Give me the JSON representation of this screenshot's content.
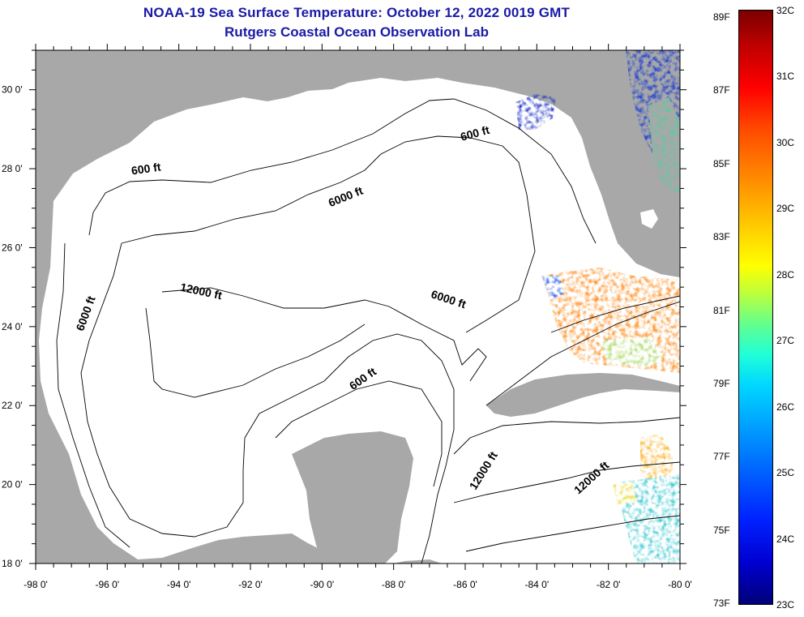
{
  "header": {
    "title": "NOAA-19 Sea Surface Temperature:  October 12, 2022 0019 GMT",
    "subtitle": "Rutgers Coastal Ocean Observation Lab"
  },
  "colors": {
    "land": "#a8a8a8",
    "water": "#ffffff",
    "title": "#1a1aa6",
    "contour": "#000000"
  },
  "map": {
    "lon_range": [
      -98,
      -80
    ],
    "lat_range": [
      18,
      31
    ],
    "lon_ticks": [
      "-98 0'",
      "-96 0'",
      "-94 0'",
      "-92 0'",
      "-90 0'",
      "-88 0'",
      "-86 0'",
      "-84 0'",
      "-82 0'",
      "-80 0'"
    ],
    "lat_ticks": [
      "18 0'",
      "20 0'",
      "22 0'",
      "24 0'",
      "26 0'",
      "28 0'",
      "30 0'"
    ],
    "contour_labels": [
      {
        "text": "600 ft",
        "lon": -85.7,
        "lat": 28.8,
        "rot": -15
      },
      {
        "text": "600 ft",
        "lon": -94.9,
        "lat": 27.9,
        "rot": -8
      },
      {
        "text": "6000 ft",
        "lon": -89.3,
        "lat": 27.2,
        "rot": -22
      },
      {
        "text": "12000 ft",
        "lon": -93.4,
        "lat": 24.8,
        "rot": 12
      },
      {
        "text": "6000 ft",
        "lon": -96.5,
        "lat": 24.3,
        "rot": -70
      },
      {
        "text": "6000 ft",
        "lon": -86.5,
        "lat": 24.6,
        "rot": 18
      },
      {
        "text": "600 ft",
        "lon": -88.8,
        "lat": 22.6,
        "rot": -35
      },
      {
        "text": "12000 ft",
        "lon": -85.4,
        "lat": 20.3,
        "rot": -58
      },
      {
        "text": "12000 ft",
        "lon": -82.4,
        "lat": 20.1,
        "rot": -42
      }
    ]
  },
  "colorbar": {
    "fahrenheit": [
      "89F",
      "87F",
      "85F",
      "83F",
      "81F",
      "79F",
      "77F",
      "75F",
      "73F"
    ],
    "celsius": [
      "32C",
      "31C",
      "30C",
      "29C",
      "28C",
      "27C",
      "26C",
      "25C",
      "24C",
      "23C"
    ]
  }
}
